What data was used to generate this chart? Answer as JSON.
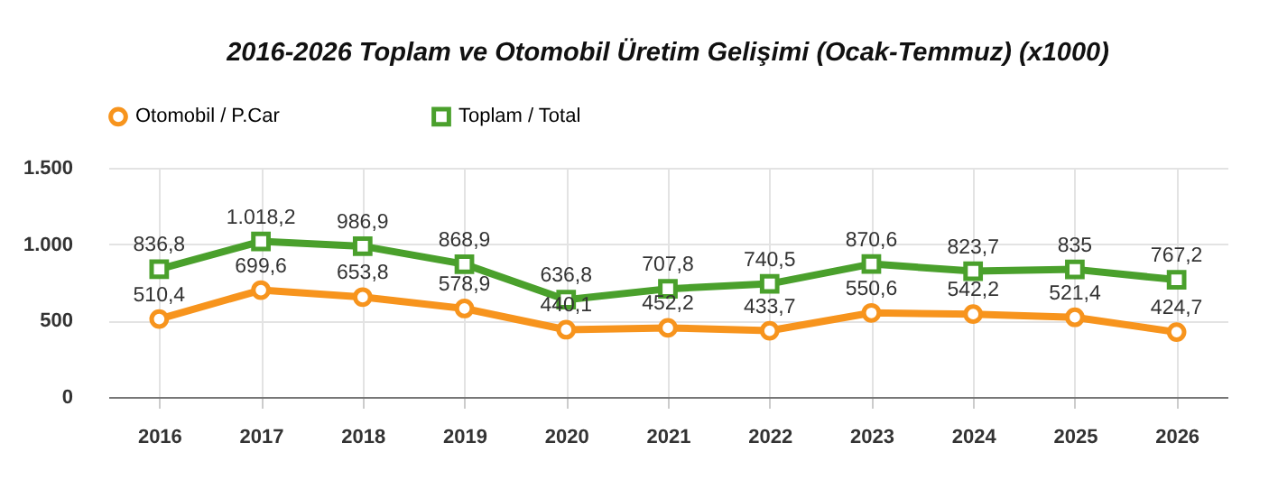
{
  "chart_data": {
    "type": "line",
    "title": "2016-2026 Toplam ve Otomobil Üretim Gelişimi (Ocak-Temmuz) (x1000)",
    "categories": [
      "2016",
      "2017",
      "2018",
      "2019",
      "2020",
      "2021",
      "2022",
      "2023",
      "2024",
      "2025",
      "2026"
    ],
    "series": [
      {
        "name": "Otomobil / P.Car",
        "color": "#f7941d",
        "marker": "circle",
        "values": [
          510.4,
          699.6,
          653.8,
          578.9,
          440.1,
          452.2,
          433.7,
          550.6,
          542.2,
          521.4,
          424.7
        ],
        "value_labels": [
          "510,4",
          "699,6",
          "653,8",
          "578,9",
          "440,1",
          "452,2",
          "433,7",
          "550,6",
          "542,2",
          "521,4",
          "424,7"
        ]
      },
      {
        "name": "Toplam / Total",
        "color": "#4aa02c",
        "marker": "square",
        "values": [
          836.8,
          1018.2,
          986.9,
          868.9,
          636.8,
          707.8,
          740.5,
          870.6,
          823.7,
          835,
          767.2
        ],
        "value_labels": [
          "836,8",
          "1.018,2",
          "986,9",
          "868,9",
          "636,8",
          "707,8",
          "740,5",
          "870,6",
          "823,7",
          "835",
          "767,2"
        ]
      }
    ],
    "ylim": [
      0,
      1500
    ],
    "yticks": [
      0,
      500,
      {
        "value": 1000,
        "label": "1.000"
      },
      {
        "value": 1500,
        "label": "1.500"
      }
    ],
    "grid": true,
    "legend": "top left",
    "line_style": "solid"
  }
}
